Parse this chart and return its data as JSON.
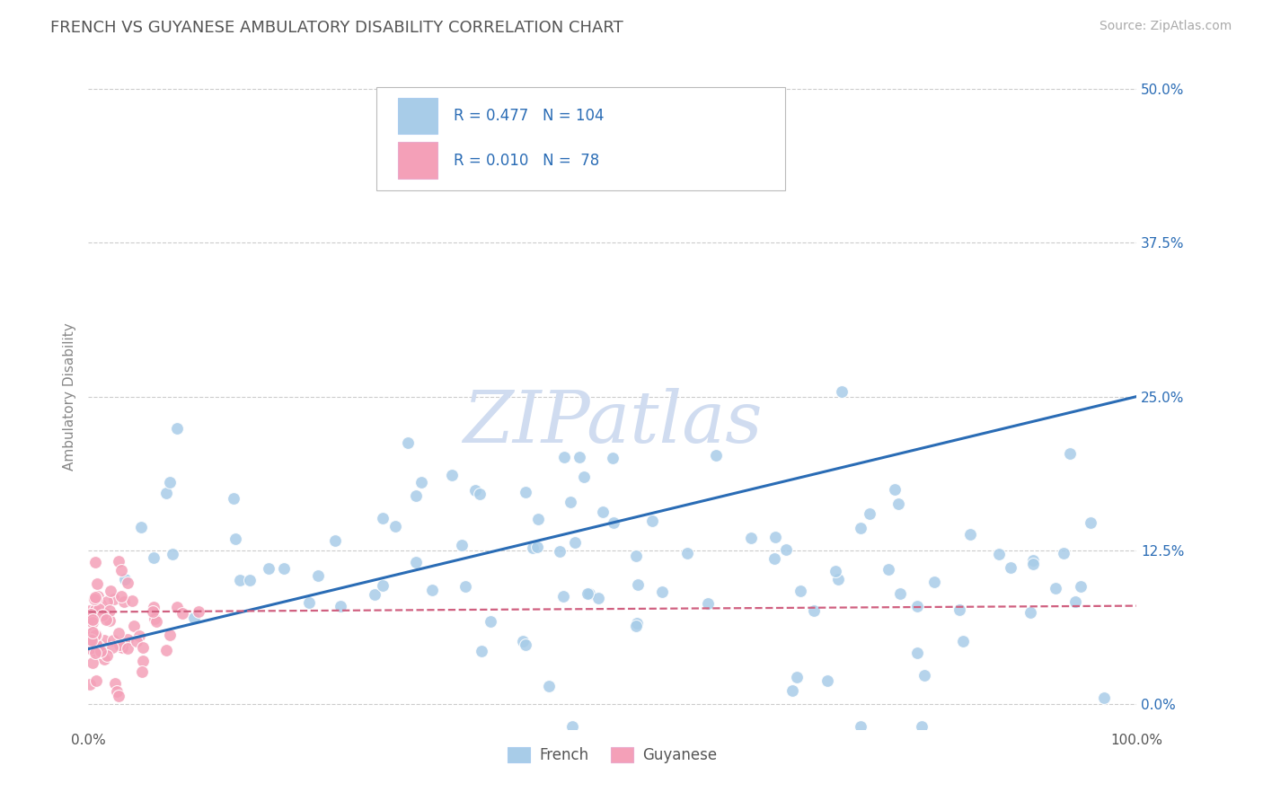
{
  "title": "FRENCH VS GUYANESE AMBULATORY DISABILITY CORRELATION CHART",
  "source": "Source: ZipAtlas.com",
  "ylabel": "Ambulatory Disability",
  "xlim": [
    0.0,
    1.0
  ],
  "ylim": [
    -0.02,
    0.52
  ],
  "xticks": [
    0.0,
    1.0
  ],
  "xtick_labels": [
    "0.0%",
    "100.0%"
  ],
  "yticks": [
    0.0,
    0.125,
    0.25,
    0.375,
    0.5
  ],
  "ytick_labels": [
    "0.0%",
    "12.5%",
    "25.0%",
    "37.5%",
    "50.0%"
  ],
  "french_R": 0.477,
  "french_N": 104,
  "guyanese_R": 0.01,
  "guyanese_N": 78,
  "french_color": "#A8CCE8",
  "guyanese_color": "#F4A0B8",
  "french_line_color": "#2A6CB5",
  "guyanese_line_color": "#D06080",
  "background_color": "#FFFFFF",
  "grid_color": "#CCCCCC",
  "title_color": "#555555",
  "watermark_text": "ZIPatlas",
  "watermark_color": "#D0DCF0",
  "legend_label_color": "#2A6CB5",
  "title_fontsize": 13,
  "source_fontsize": 10
}
